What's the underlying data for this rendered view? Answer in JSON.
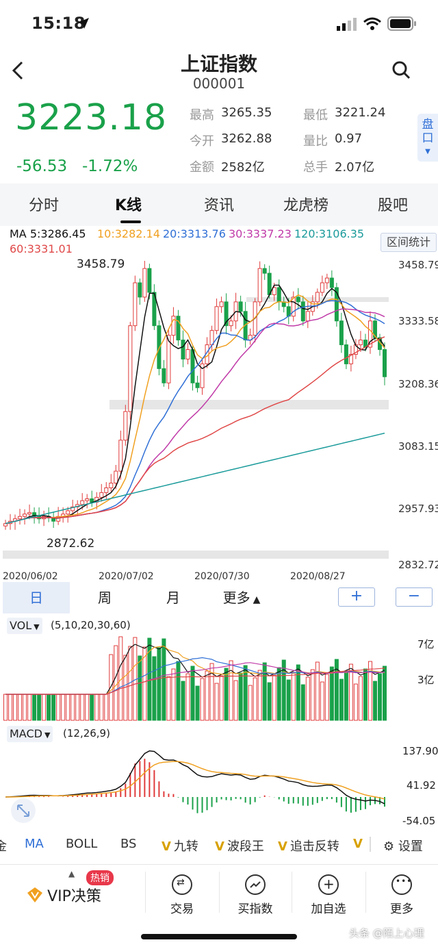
{
  "status": {
    "time": "15:18"
  },
  "header": {
    "title": "上证指数",
    "code": "000001"
  },
  "quote": {
    "price": "3223.18",
    "change": "-56.53",
    "change_pct": "-1.72%",
    "high_label": "最高",
    "high": "3265.35",
    "low_label": "最低",
    "low": "3221.24",
    "open_label": "今开",
    "open": "3262.88",
    "ratio_label": "量比",
    "ratio": "0.97",
    "amount_label": "金额",
    "amount": "2582亿",
    "turnover_label": "总手",
    "turnover": "2.07亿",
    "pankou": "盘口"
  },
  "tabs": [
    "分时",
    "K线",
    "资讯",
    "龙虎榜",
    "股吧"
  ],
  "kline": {
    "ma_labels": {
      "ma5": "MA 5:3286.45",
      "ma10": "10:3282.14",
      "ma20": "20:3313.76",
      "ma30": "30:3337.23",
      "ma120": "120:3106.35",
      "ma60": "60:3331.01"
    },
    "range_stat": "区间统计",
    "y_ticks": [
      "3458.79",
      "3333.58",
      "3208.36",
      "3083.15",
      "2957.93",
      "2832.72"
    ],
    "x_ticks": [
      "2020/06/02",
      "2020/07/02",
      "2020/07/30",
      "2020/08/27"
    ],
    "max_label": "3458.79",
    "min_label": "2872.62",
    "colors": {
      "up": "#e03a3a",
      "down": "#1aa14a",
      "ma5": "#111111",
      "ma10": "#f0a020",
      "ma20": "#2f6fd6",
      "ma30": "#c03aa8",
      "ma60": "#e04848",
      "ma120": "#1a9a9a"
    }
  },
  "period": {
    "day": "日",
    "week": "周",
    "month": "月",
    "more": "更多",
    "zoom_in": "+",
    "zoom_out": "−"
  },
  "vol": {
    "label": "VOL",
    "params": "(5,10,20,30,60)",
    "y_ticks": [
      "7亿",
      "3亿"
    ]
  },
  "macd": {
    "label": "MACD",
    "params": "(12,26,9)",
    "y_ticks": [
      "137.90",
      "41.92",
      "-54.05"
    ]
  },
  "indicators": [
    {
      "text": "金",
      "prefix": ""
    },
    {
      "text": "MA",
      "prefix": ""
    },
    {
      "text": "BOLL",
      "prefix": ""
    },
    {
      "text": "BS",
      "prefix": ""
    },
    {
      "text": "九转",
      "prefix": "V"
    },
    {
      "text": "波段王",
      "prefix": "V"
    },
    {
      "text": "追击反转",
      "prefix": "V"
    },
    {
      "text": "",
      "prefix": "V"
    }
  ],
  "settings": "设置",
  "bottom_nav": {
    "vip_badge": "热销",
    "vip": "VIP决策",
    "trade": "交易",
    "buy_index": "买指数",
    "add_fav": "加自选",
    "more": "更多"
  },
  "watermark": "头条 @陌上心理"
}
